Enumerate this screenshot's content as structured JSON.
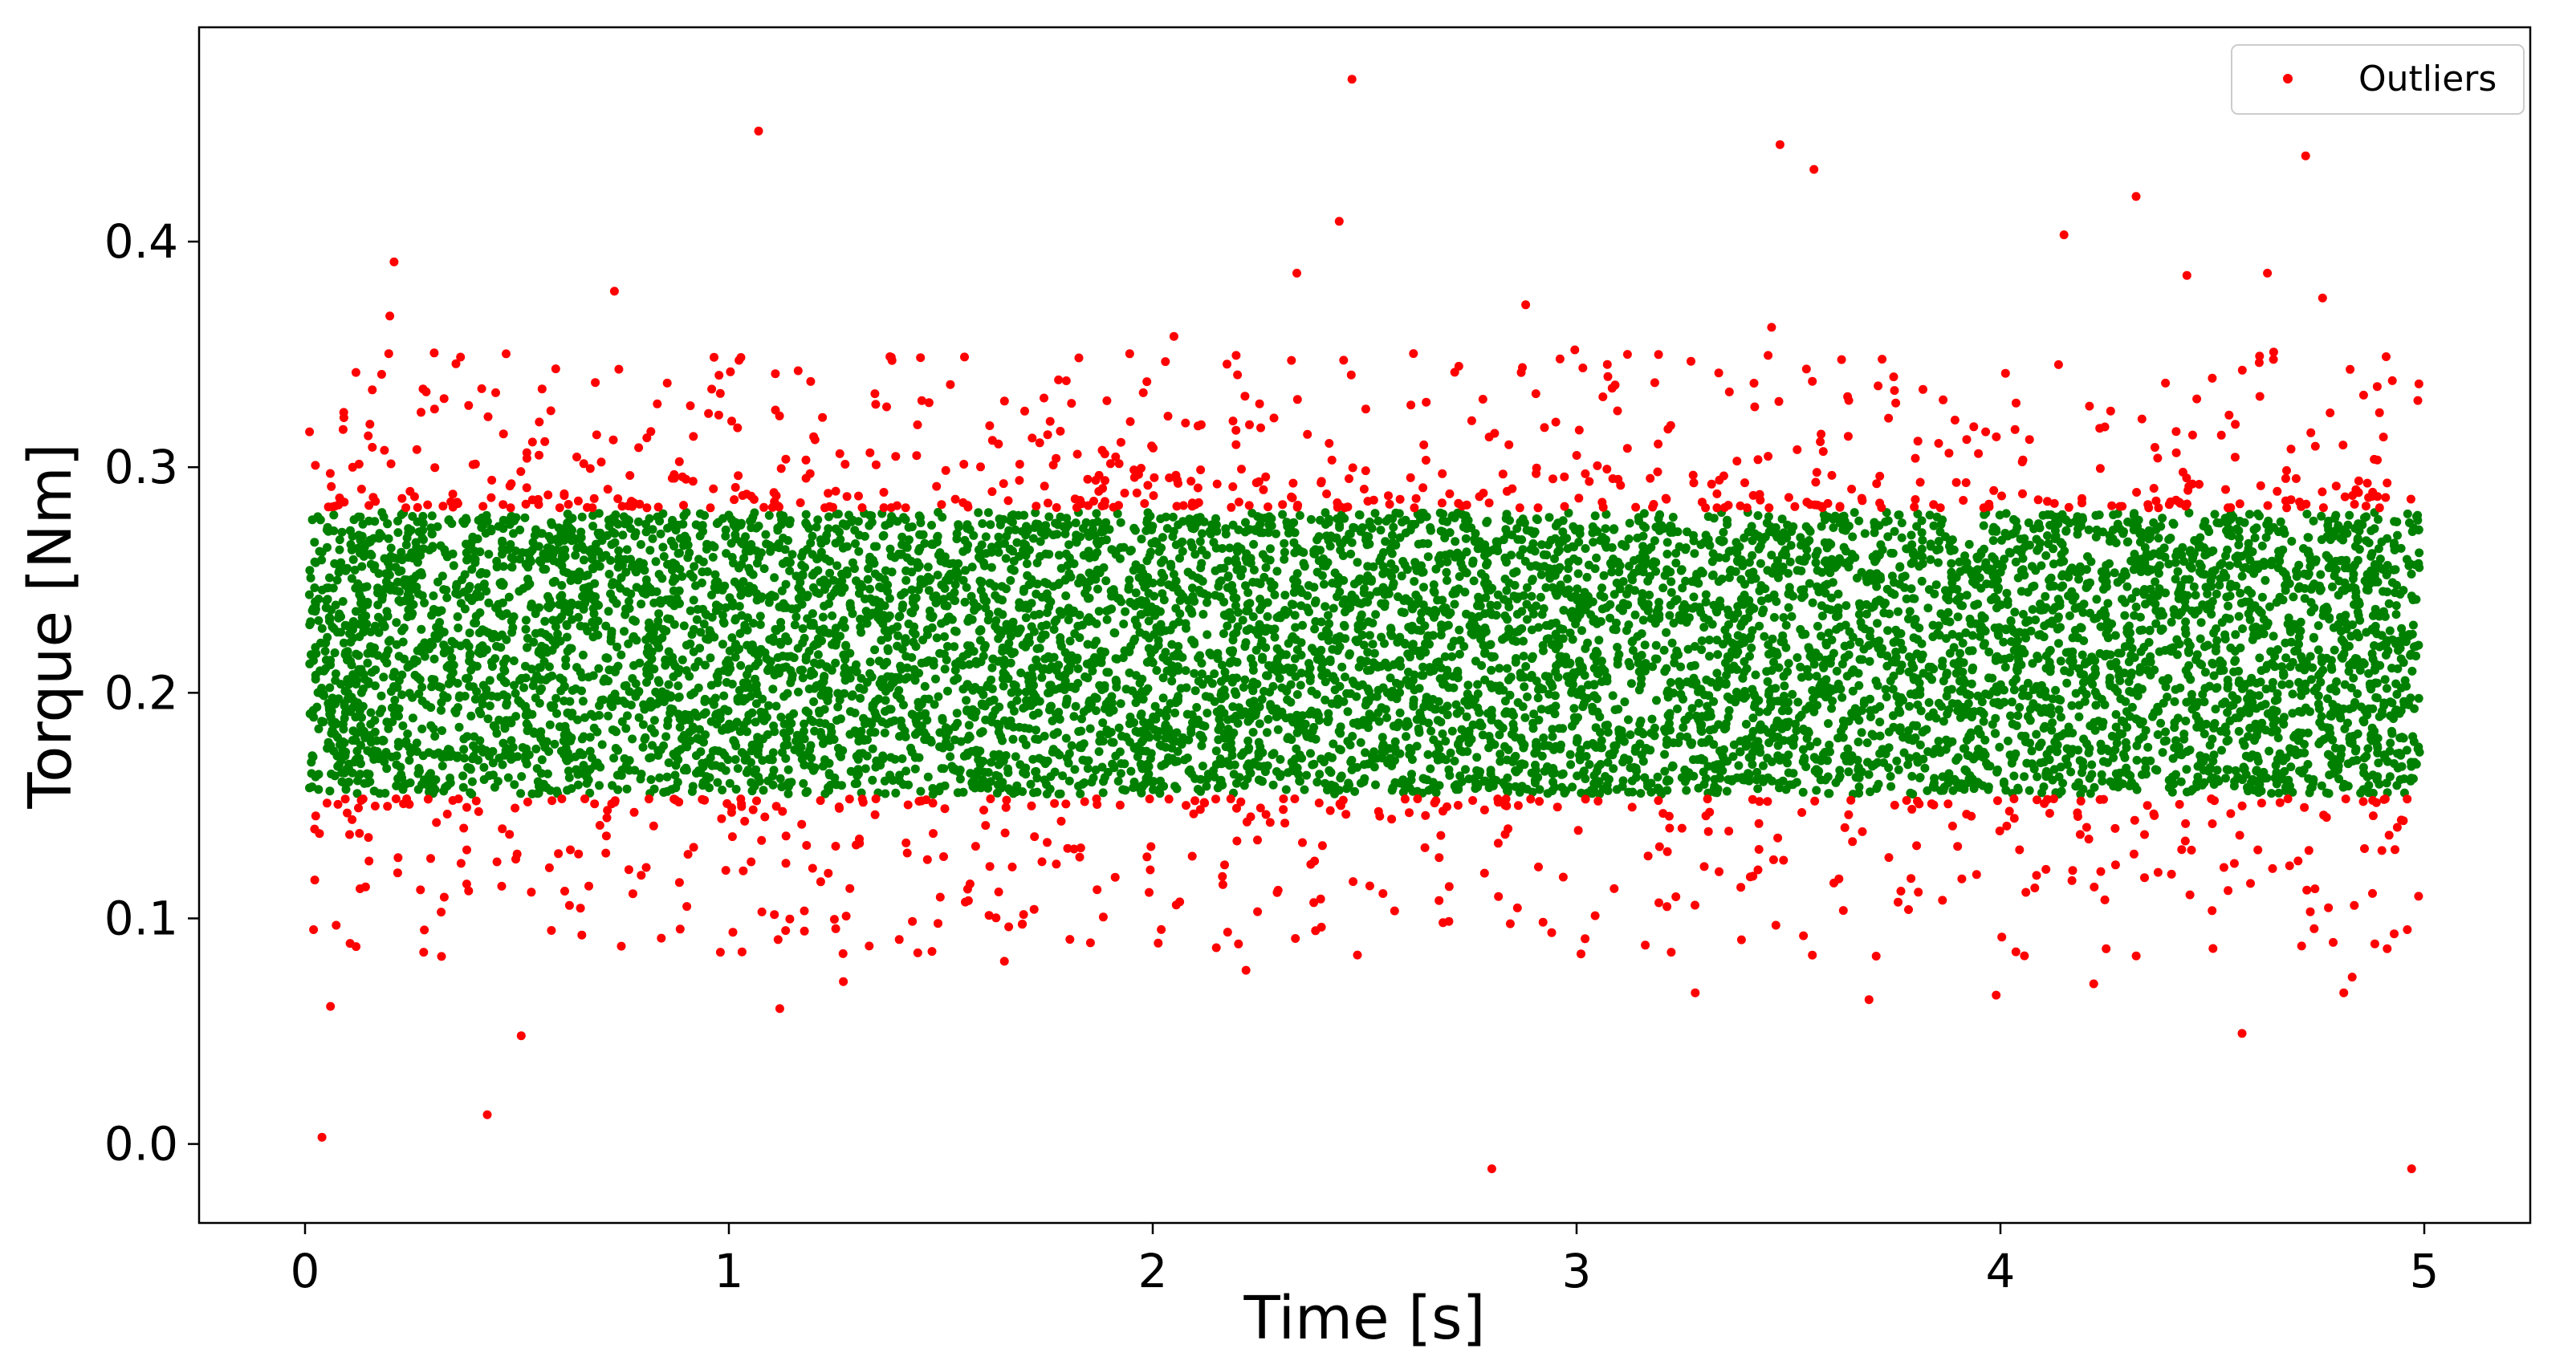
{
  "chart_data": {
    "type": "scatter",
    "title": "",
    "xlabel": "Time [s]",
    "ylabel": "Torque [Nm]",
    "xlim": [
      -0.25,
      5.25
    ],
    "ylim": [
      -0.035,
      0.495
    ],
    "xticks": [
      0,
      1,
      2,
      3,
      4,
      5
    ],
    "xtick_labels": [
      "0",
      "1",
      "2",
      "3",
      "4",
      "5"
    ],
    "yticks": [
      0.0,
      0.1,
      0.2,
      0.3,
      0.4
    ],
    "ytick_labels": [
      "0.0",
      "0.1",
      "0.2",
      "0.3",
      "0.4"
    ],
    "grid": false,
    "legend": {
      "position": "top-right",
      "entries": [
        "Outliers"
      ]
    },
    "colors": {
      "inliers": "#008000",
      "outliers": "#ff0000"
    },
    "series": [
      {
        "name": "Outliers",
        "color": "#ff0000",
        "x": [
          0.04,
          0.06,
          0.02,
          0.12,
          0.21,
          0.2,
          0.43,
          0.51,
          0.98,
          1.07,
          1.12,
          1.27,
          1.72,
          2.15,
          2.22,
          2.34,
          2.44,
          2.47,
          2.8,
          2.88,
          3.02,
          3.28,
          3.46,
          3.48,
          3.56,
          3.69,
          3.99,
          4.15,
          4.32,
          4.57,
          4.63,
          4.72,
          4.81,
          4.83,
          4.91,
          4.96,
          4.97,
          0.28,
          0.58,
          0.73,
          1.38,
          1.65,
          2.05,
          2.38,
          3.12,
          3.75,
          4.22,
          4.44,
          4.76
        ],
        "y": [
          0.003,
          0.061,
          0.095,
          0.342,
          0.391,
          0.367,
          0.013,
          0.048,
          0.085,
          0.449,
          0.06,
          0.072,
          0.104,
          0.087,
          0.077,
          0.386,
          0.409,
          0.472,
          -0.011,
          0.372,
          0.091,
          0.067,
          0.362,
          0.443,
          0.432,
          0.064,
          0.066,
          0.403,
          0.42,
          0.049,
          0.386,
          0.438,
          0.067,
          0.074,
          0.349,
          0.095,
          -0.011,
          0.085,
          0.325,
          0.378,
          0.349,
          0.081,
          0.358,
          0.107,
          0.35,
          0.334,
          0.071,
          0.385,
          0.375
        ]
      }
    ],
    "notes_unplotted_bulk": "Dense band of ~8000 inlier points between ~0.155 and ~0.28 Nm across 0–5 s, with outlier bands just outside it; generated procedurally below."
  }
}
